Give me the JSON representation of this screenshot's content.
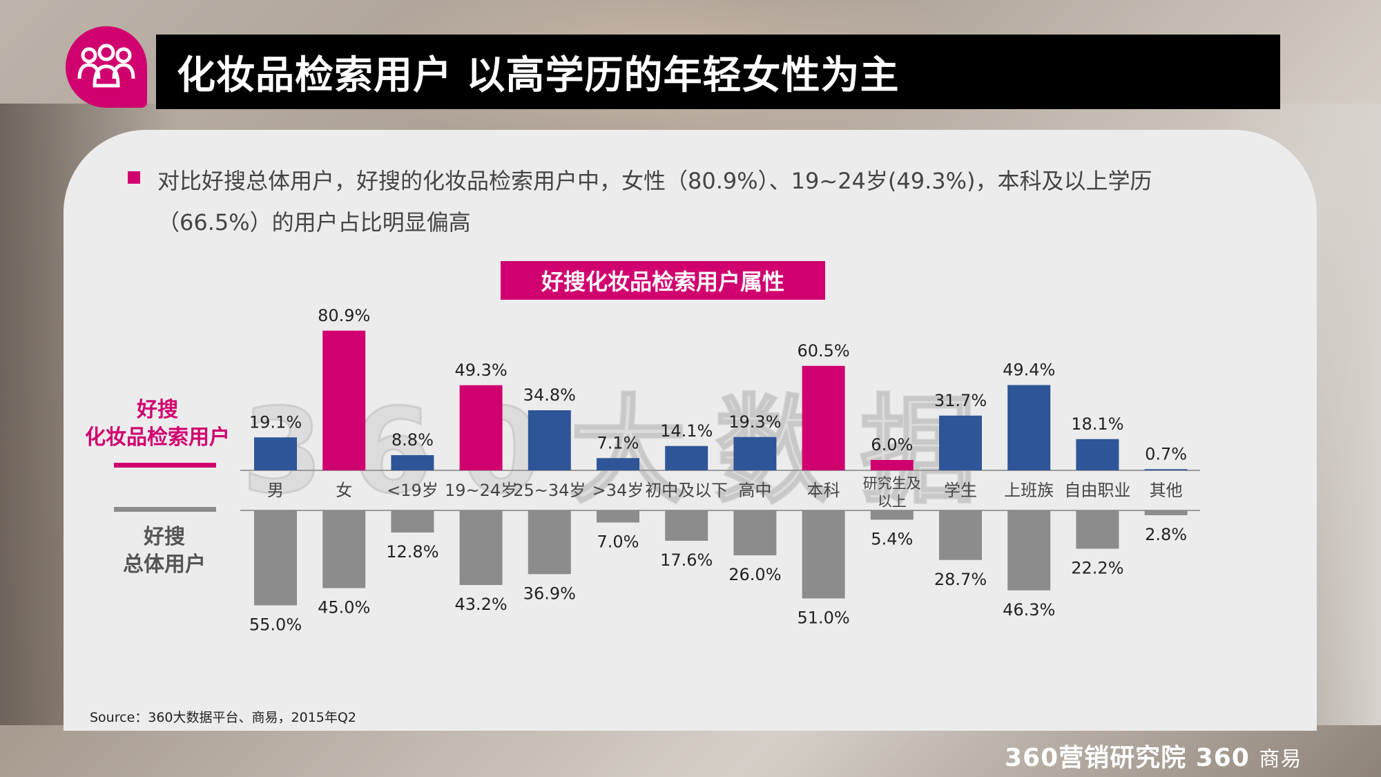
{
  "header": {
    "title": "化妆品检索用户 以高学历的年轻女性为主",
    "icon": "users-group-icon"
  },
  "summary": {
    "line1": "对比好搜总体用户，好搜的化妆品检索用户中，女性（80.9%）、19~24岁(49.3%)，本科及以上学历",
    "line2": "（66.5%）的用户占比明显偏高"
  },
  "row_labels": {
    "top_line1": "好搜",
    "top_line2": "化妆品检索用户",
    "bottom_line1": "好搜",
    "bottom_line2": "总体用户"
  },
  "watermark": "360大数据",
  "footer": {
    "source": "Source：360大数据平台、商易，2015年Q2",
    "brand_main": "360营销研究院 360",
    "brand_sub": "商易"
  },
  "colors": {
    "accent": "#d0006f",
    "blue": "#2e5597",
    "gray": "#8c8c8c"
  },
  "chart_data": {
    "type": "bar",
    "title": "好搜化妆品检索用户属性",
    "categories": [
      "男",
      "女",
      "<19岁",
      "19~24岁",
      "25~34岁",
      ">34岁",
      "初中及以下",
      "高中",
      "本科",
      "研究生及以上",
      "学生",
      "上班族",
      "自由职业",
      "其他"
    ],
    "series": [
      {
        "name": "好搜化妆品检索用户",
        "values": [
          19.1,
          80.9,
          8.8,
          49.3,
          34.8,
          7.1,
          14.1,
          19.3,
          60.5,
          6.0,
          31.7,
          49.4,
          18.1,
          0.7
        ],
        "labels": [
          "19.1%",
          "80.9%",
          "8.8%",
          "49.3%",
          "34.8%",
          "7.1%",
          "14.1%",
          "19.3%",
          "60.5%",
          "6.0%",
          "31.7%",
          "49.4%",
          "18.1%",
          "0.7%"
        ],
        "highlight": [
          false,
          true,
          false,
          true,
          false,
          false,
          false,
          false,
          true,
          true,
          false,
          false,
          false,
          false
        ]
      },
      {
        "name": "好搜总体用户",
        "values": [
          55.0,
          45.0,
          12.8,
          43.2,
          36.9,
          7.0,
          17.6,
          26.0,
          51.0,
          5.4,
          28.7,
          46.3,
          22.2,
          2.8
        ],
        "labels": [
          "55.0%",
          "45.0%",
          "12.8%",
          "43.2%",
          "36.9%",
          "7.0%",
          "17.6%",
          "26.0%",
          "51.0%",
          "5.4%",
          "28.7%",
          "46.3%",
          "22.2%",
          "2.8%"
        ]
      }
    ],
    "ylim": [
      0,
      100
    ],
    "grid": false,
    "legend": "left"
  }
}
